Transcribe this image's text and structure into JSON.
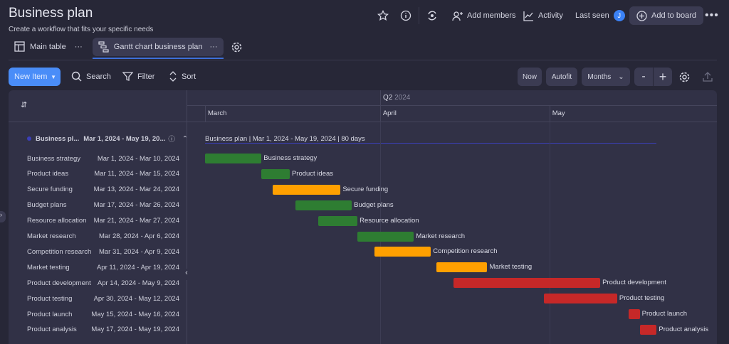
{
  "header": {
    "title": "Business plan",
    "subtitle": "Create a workflow that fits your specific needs",
    "add_members": "Add members",
    "activity": "Activity",
    "last_seen": "Last seen",
    "avatar_initial": "J",
    "add_to_board": "Add to board"
  },
  "tabs": [
    {
      "label": "Main table",
      "icon": "table-home-icon"
    },
    {
      "label": "Gantt chart business plan",
      "icon": "gantt-icon",
      "active": true
    }
  ],
  "toolbar": {
    "new_item": "New Item",
    "search": "Search",
    "filter": "Filter",
    "sort": "Sort",
    "now": "Now",
    "autofit": "Autofit",
    "scale": "Months",
    "zoom_out": "-",
    "zoom_in": "+"
  },
  "timeline": {
    "quarter": "Q2",
    "quarter_year": "2024",
    "months": [
      "March",
      "April",
      "May"
    ]
  },
  "group": {
    "name": "Business pl...",
    "dates": "Mar 1, 2024 - May 19, 20...",
    "bar_label": "Business plan | Mar 1, 2024 - May 19, 2024 | 80 days",
    "color": "#3b3fb8"
  },
  "colors": {
    "green": "#2e7d32",
    "orange": "#ffa000",
    "red": "#c62828",
    "accent": "#4a8df8"
  },
  "tasks": [
    {
      "name": "Business strategy",
      "dates": "Mar 1, 2024 - Mar 10, 2024",
      "start": "2024-03-01",
      "end": "2024-03-10",
      "color": "green"
    },
    {
      "name": "Product ideas",
      "dates": "Mar 11, 2024 - Mar 15, 2024",
      "start": "2024-03-11",
      "end": "2024-03-15",
      "color": "green"
    },
    {
      "name": "Secure funding",
      "dates": "Mar 13, 2024 - Mar 24, 2024",
      "start": "2024-03-13",
      "end": "2024-03-24",
      "color": "orange"
    },
    {
      "name": "Budget plans",
      "dates": "Mar 17, 2024 - Mar 26, 2024",
      "start": "2024-03-17",
      "end": "2024-03-26",
      "color": "green"
    },
    {
      "name": "Resource allocation",
      "dates": "Mar 21, 2024 - Mar 27, 2024",
      "start": "2024-03-21",
      "end": "2024-03-27",
      "color": "green"
    },
    {
      "name": "Market research",
      "dates": "Mar 28, 2024 - Apr 6, 2024",
      "start": "2024-03-28",
      "end": "2024-04-06",
      "color": "green"
    },
    {
      "name": "Competition research",
      "dates": "Mar 31, 2024 - Apr 9, 2024",
      "start": "2024-03-31",
      "end": "2024-04-09",
      "color": "orange"
    },
    {
      "name": "Market testing",
      "dates": "Apr 11, 2024 - Apr 19, 2024",
      "start": "2024-04-11",
      "end": "2024-04-19",
      "color": "orange"
    },
    {
      "name": "Product development",
      "dates": "Apr 14, 2024 - May 9, 2024",
      "start": "2024-04-14",
      "end": "2024-05-09",
      "color": "red"
    },
    {
      "name": "Product testing",
      "dates": "Apr 30, 2024 - May 12, 2024",
      "start": "2024-04-30",
      "end": "2024-05-12",
      "color": "red"
    },
    {
      "name": "Product launch",
      "dates": "May 15, 2024 - May 16, 2024",
      "start": "2024-05-15",
      "end": "2024-05-16",
      "color": "red"
    },
    {
      "name": "Product analysis",
      "dates": "May 17, 2024 - May 19, 2024",
      "start": "2024-05-17",
      "end": "2024-05-19",
      "color": "red"
    }
  ]
}
